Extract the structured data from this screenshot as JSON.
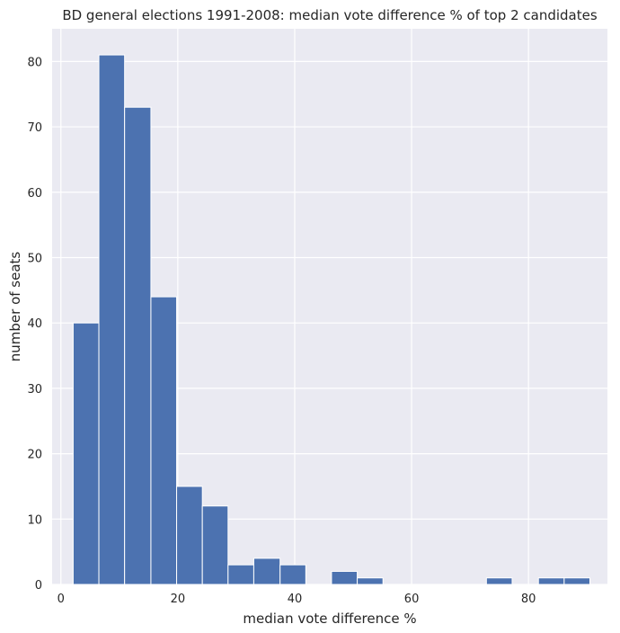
{
  "chart_data": {
    "type": "bar",
    "title": "BD general elections 1991-2008: median vote difference % of top 2 candidates",
    "xlabel": "median vote difference %",
    "ylabel": "number of seats",
    "xlim": [
      -1.5,
      93.5
    ],
    "ylim": [
      0,
      85
    ],
    "xticks": [
      0,
      20,
      40,
      60,
      80
    ],
    "yticks": [
      0,
      10,
      20,
      30,
      40,
      50,
      60,
      70,
      80
    ],
    "grid": true,
    "bar_color": "#4c72b0",
    "background": "#eaeaf2",
    "bins": [
      {
        "x0": 2.1,
        "x1": 6.5,
        "count": 40
      },
      {
        "x0": 6.5,
        "x1": 10.9,
        "count": 81
      },
      {
        "x0": 10.9,
        "x1": 15.4,
        "count": 73
      },
      {
        "x0": 15.4,
        "x1": 19.8,
        "count": 44
      },
      {
        "x0": 19.8,
        "x1": 24.2,
        "count": 15
      },
      {
        "x0": 24.2,
        "x1": 28.6,
        "count": 12
      },
      {
        "x0": 28.6,
        "x1": 33.0,
        "count": 3
      },
      {
        "x0": 33.0,
        "x1": 37.5,
        "count": 4
      },
      {
        "x0": 37.5,
        "x1": 41.9,
        "count": 3
      },
      {
        "x0": 41.9,
        "x1": 46.3,
        "count": 0
      },
      {
        "x0": 46.3,
        "x1": 50.7,
        "count": 2
      },
      {
        "x0": 50.7,
        "x1": 55.1,
        "count": 1
      },
      {
        "x0": 55.1,
        "x1": 59.6,
        "count": 0
      },
      {
        "x0": 59.6,
        "x1": 64.0,
        "count": 0
      },
      {
        "x0": 64.0,
        "x1": 68.4,
        "count": 0
      },
      {
        "x0": 68.4,
        "x1": 72.8,
        "count": 0
      },
      {
        "x0": 72.8,
        "x1": 77.2,
        "count": 1
      },
      {
        "x0": 77.2,
        "x1": 81.7,
        "count": 0
      },
      {
        "x0": 81.7,
        "x1": 86.1,
        "count": 1
      },
      {
        "x0": 86.1,
        "x1": 90.5,
        "count": 1
      }
    ]
  }
}
